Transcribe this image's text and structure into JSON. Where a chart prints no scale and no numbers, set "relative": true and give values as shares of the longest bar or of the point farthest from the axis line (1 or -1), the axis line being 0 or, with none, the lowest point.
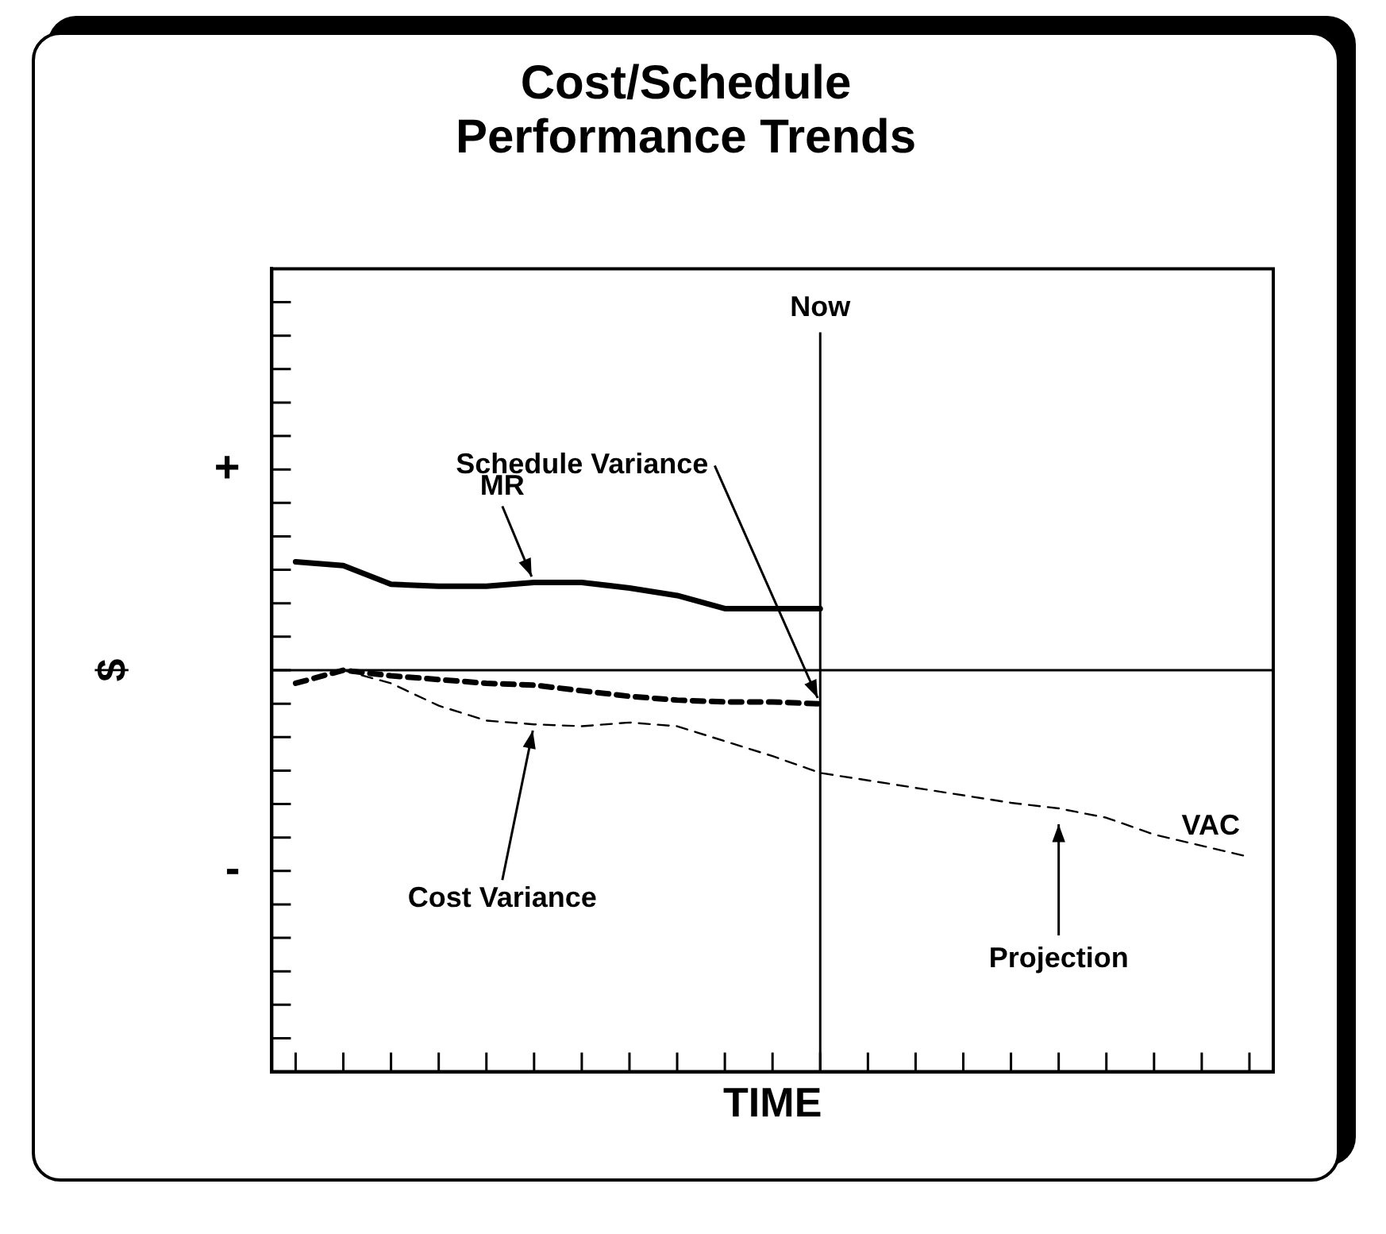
{
  "chart_data": {
    "type": "line",
    "title": "Cost/Schedule Performance Trends",
    "ylabel": "$",
    "relative": true,
    "legend": false,
    "grid": false,
    "marker": "none",
    "categories": [
      null,
      null,
      null,
      null,
      null,
      null,
      null,
      null,
      null,
      null,
      null,
      null,
      null,
      null,
      null,
      null,
      null,
      null,
      null,
      null,
      null
    ],
    "series": [
      {
        "name": "MR",
        "color": "#000000",
        "line_style": "solid",
        "values": [
          0.58,
          0.56,
          0.46,
          0.45,
          0.45,
          0.47,
          0.47,
          0.44,
          0.4,
          0.33,
          0.33,
          0.33,
          null,
          null,
          null,
          null,
          null,
          null,
          null,
          null,
          null
        ]
      },
      {
        "name": "Schedule Variance",
        "color": "#000000",
        "line_style": "dashed",
        "values": [
          -0.07,
          0,
          -0.03,
          -0.05,
          -0.07,
          -0.08,
          -0.11,
          -0.14,
          -0.16,
          -0.17,
          -0.17,
          -0.18,
          null,
          null,
          null,
          null,
          null,
          null,
          null,
          null,
          null
        ]
      },
      {
        "name": "Cost Variance",
        "color": "#000000",
        "line_style": "dashed",
        "values": [
          null,
          0,
          -0.07,
          -0.19,
          -0.27,
          -0.29,
          -0.3,
          -0.28,
          -0.3,
          -0.38,
          -0.46,
          -0.55,
          -0.59,
          -0.63,
          -0.67,
          -0.71,
          -0.74,
          -0.79,
          -0.88,
          -0.94,
          -1
        ]
      }
    ],
    "ref_lines": [
      {
        "axis": "x",
        "label": "Now",
        "color": "#000000",
        "line_style": "solid"
      }
    ],
    "annotations": [
      "+",
      "-",
      "VAC",
      "Projection",
      "TIME"
    ]
  }
}
